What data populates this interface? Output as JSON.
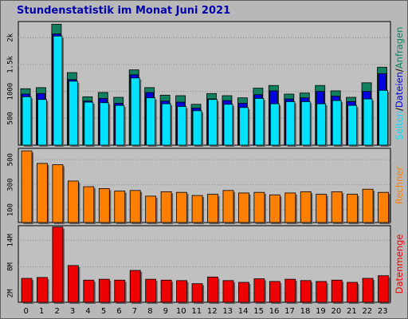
{
  "title": "Stundenstatistik im Monat Juni 2021",
  "colors": {
    "background": "#b8b8b8",
    "plot": "#c0c0c0",
    "anfragen": "#108060",
    "dateien": "#0000e0",
    "seiten": "#00e0ff",
    "rechner": "#ff8000",
    "datenmenge": "#ee0000",
    "title": "#0000b0"
  },
  "chart_data": [
    {
      "type": "bar",
      "name": "top-panel",
      "categories": [
        "0",
        "1",
        "2",
        "3",
        "4",
        "5",
        "6",
        "7",
        "8",
        "9",
        "10",
        "11",
        "12",
        "13",
        "14",
        "15",
        "16",
        "17",
        "18",
        "19",
        "20",
        "21",
        "22",
        "23"
      ],
      "series": [
        {
          "name": "Anfragen",
          "values": [
            1050,
            1070,
            2250,
            1350,
            900,
            980,
            890,
            1400,
            1070,
            930,
            920,
            760,
            960,
            920,
            880,
            1060,
            1110,
            950,
            970,
            1110,
            1010,
            890,
            1160,
            1450
          ]
        },
        {
          "name": "Dateien",
          "values": [
            950,
            960,
            2070,
            1220,
            820,
            870,
            780,
            1310,
            980,
            820,
            800,
            690,
            860,
            830,
            780,
            940,
            1010,
            860,
            880,
            1000,
            910,
            810,
            1000,
            1330
          ]
        },
        {
          "name": "Seiten",
          "values": [
            900,
            850,
            2030,
            1190,
            800,
            790,
            740,
            1250,
            880,
            770,
            720,
            640,
            850,
            760,
            700,
            870,
            770,
            810,
            810,
            770,
            830,
            740,
            860,
            1020
          ]
        }
      ],
      "yticks": [
        500,
        1000,
        1500,
        2000
      ],
      "ytick_labels": [
        "500",
        "1000",
        "1.5k",
        "2k"
      ],
      "ylim": [
        0,
        2300
      ],
      "ylabel_parts": [
        "Seiten",
        "Dateien",
        "Anfragen"
      ],
      "ylabel_sep": "/"
    },
    {
      "type": "bar",
      "name": "middle-panel",
      "series": [
        {
          "name": "Rechner",
          "values": [
            570,
            470,
            460,
            330,
            285,
            270,
            250,
            255,
            210,
            245,
            240,
            215,
            225,
            255,
            235,
            240,
            220,
            235,
            245,
            225,
            245,
            225,
            265,
            240
          ]
        }
      ],
      "yticks": [
        100,
        300,
        500
      ],
      "ytick_labels": [
        "100",
        "300",
        "500"
      ],
      "ylim": [
        0,
        590
      ],
      "ylabel": "Rechner"
    },
    {
      "type": "bar",
      "name": "bottom-panel",
      "series": [
        {
          "name": "Datenmenge",
          "values": [
            5.4,
            5.6,
            17.0,
            8.3,
            5.0,
            5.2,
            5.0,
            7.2,
            5.2,
            5.0,
            4.9,
            4.2,
            5.7,
            4.9,
            4.5,
            5.3,
            4.7,
            5.2,
            4.9,
            4.7,
            5.0,
            4.5,
            5.4,
            6.0
          ]
        }
      ],
      "yticks": [
        2,
        8,
        14
      ],
      "ytick_labels": [
        "2M",
        "8M",
        "14M"
      ],
      "ylim": [
        0,
        17.3
      ],
      "ylabel": "Datenmenge"
    }
  ]
}
